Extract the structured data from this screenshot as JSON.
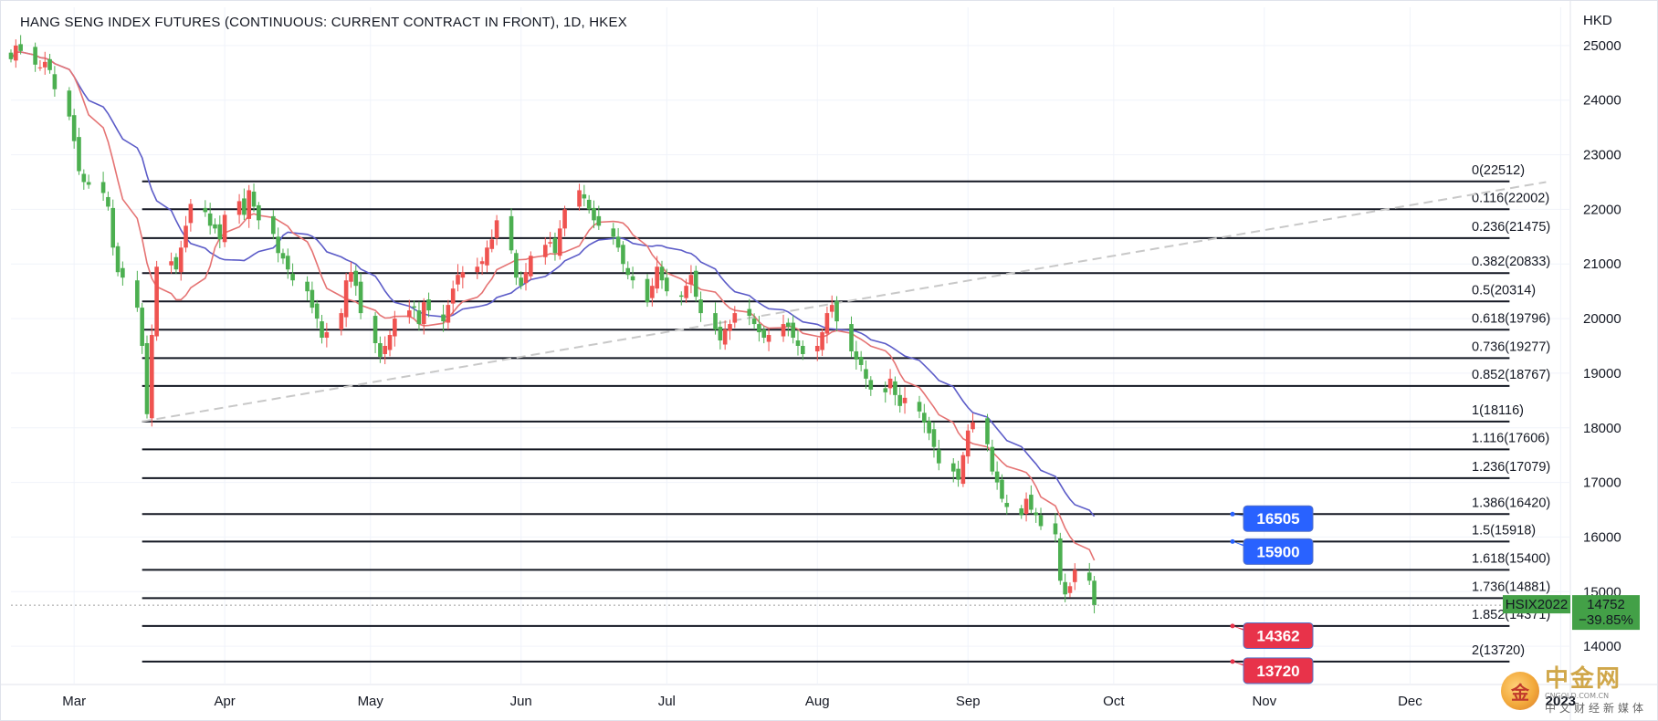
{
  "header": {
    "title": "HANG SENG INDEX FUTURES (CONTINUOUS: CURRENT CONTRACT IN FRONT), 1D, HKEX"
  },
  "price_axis": {
    "currency": "HKD",
    "ticks": [
      25000,
      24000,
      23000,
      22000,
      21000,
      20000,
      19000,
      18000,
      17000,
      16000,
      15000,
      14000
    ]
  },
  "time_axis": {
    "ticks": [
      "Mar",
      "Apr",
      "May",
      "Jun",
      "Jul",
      "Aug",
      "Sep",
      "Oct",
      "Nov",
      "Dec",
      "2023"
    ]
  },
  "last_price": {
    "symbol": "HSIX2022",
    "price": "14752",
    "change": "−39.85%",
    "value": 14752
  },
  "watermark": {
    "cn": "中金网",
    "en": "CNGOLD.COM.CN",
    "sub": "中文财经新媒体"
  },
  "colors": {
    "up": "#ef5350",
    "down": "#26a69a",
    "down_body": "#4caf50",
    "ma_fast": "#e57373",
    "ma_slow": "#5c5cc8",
    "fib_line": "#131722",
    "trendline": "#c8c8c8",
    "tag_blue": "#2962ff",
    "tag_red": "#e8334a",
    "last_badge": "#43a047"
  },
  "chart_data": {
    "type": "candlestick",
    "title": "HANG SENG INDEX FUTURES (CONTINUOUS: CURRENT CONTRACT IN FRONT), 1D, HKEX",
    "ylabel": "HKD",
    "ylim": [
      13300,
      25700
    ],
    "xlim": [
      "2022-02-16",
      "2023-01-03"
    ],
    "fib_levels": [
      {
        "ratio": "0",
        "price": 22512,
        "label": "0(22512)"
      },
      {
        "ratio": "0.116",
        "price": 22002,
        "label": "0.116(22002)"
      },
      {
        "ratio": "0.236",
        "price": 21475,
        "label": "0.236(21475)"
      },
      {
        "ratio": "0.382",
        "price": 20833,
        "label": "0.382(20833)"
      },
      {
        "ratio": "0.5",
        "price": 20314,
        "label": "0.5(20314)"
      },
      {
        "ratio": "0.618",
        "price": 19796,
        "label": "0.618(19796)"
      },
      {
        "ratio": "0.736",
        "price": 19277,
        "label": "0.736(19277)"
      },
      {
        "ratio": "0.852",
        "price": 18767,
        "label": "0.852(18767)"
      },
      {
        "ratio": "1",
        "price": 18116,
        "label": "1(18116)"
      },
      {
        "ratio": "1.116",
        "price": 17606,
        "label": "1.116(17606)"
      },
      {
        "ratio": "1.236",
        "price": 17079,
        "label": "1.236(17079)"
      },
      {
        "ratio": "1.386",
        "price": 16420,
        "label": "1.386(16420)"
      },
      {
        "ratio": "1.5",
        "price": 15918,
        "label": "1.5(15918)"
      },
      {
        "ratio": "1.618",
        "price": 15400,
        "label": "1.618(15400)"
      },
      {
        "ratio": "1.736",
        "price": 14881,
        "label": "1.736(14881)"
      },
      {
        "ratio": "1.852",
        "price": 14371,
        "label": "1.852(14371)"
      },
      {
        "ratio": "2",
        "price": 13720,
        "label": "2(13720)"
      }
    ],
    "fib_range": {
      "start": "2022-03-15",
      "end": "2022-12-29"
    },
    "trendline": {
      "start": {
        "date": "2022-03-15",
        "price": 18116
      },
      "end": {
        "date": "2022-12-29",
        "price": 22500
      }
    },
    "price_tags": [
      {
        "label": "16505",
        "price": 16505,
        "target": 16420,
        "color": "blue"
      },
      {
        "label": "15900",
        "price": 15900,
        "target": 15918,
        "color": "blue"
      },
      {
        "label": "14362",
        "price": 14362,
        "target": 14371,
        "color": "red"
      },
      {
        "label": "13720",
        "price": 13720,
        "target": 13720,
        "color": "red"
      }
    ],
    "start_date": "2022-02-16",
    "closes": [
      24750,
      25000,
      24900,
      24650,
      24600,
      24700,
      24550,
      24200,
      23700,
      23250,
      22700,
      22500,
      22450,
      22300,
      22050,
      21300,
      20850,
      20750,
      20200,
      19500,
      18250,
      19700,
      20950,
      21050,
      20900,
      21300,
      21700,
      22100,
      21950,
      21700,
      21650,
      21450,
      21900,
      22150,
      21900,
      22350,
      22050,
      21800,
      21550,
      21200,
      21100,
      20900,
      20700,
      20500,
      20200,
      20000,
      19650,
      19750,
      20100,
      20700,
      20850,
      20600,
      20100,
      19550,
      19300,
      19500,
      19700,
      20000,
      20150,
      20200,
      19900,
      20300,
      20150,
      19950,
      20250,
      20550,
      20800,
      20850,
      20950,
      21050,
      21300,
      21450,
      21800,
      21250,
      20750,
      20600,
      20850,
      21150,
      21350,
      21400,
      21200,
      21650,
      22000,
      22350,
      22200,
      22000,
      21800,
      21700,
      21500,
      21300,
      21000,
      20800,
      20700,
      20300,
      20600,
      20950,
      20700,
      20500,
      20400,
      20600,
      20800,
      20400,
      20100,
      19800,
      19600,
      19800,
      19900,
      20100,
      20050,
      19900,
      19750,
      19650,
      19700,
      19900,
      19850,
      19650,
      19500,
      19350,
      19500,
      19750,
      20100,
      20250,
      19950,
      19400,
      19250,
      19150,
      18900,
      18700,
      18650,
      18900,
      18600,
      18400,
      18550,
      18300,
      18100,
      17900,
      17650,
      17350,
      17200,
      17050,
      17500,
      17950,
      18100,
      17700,
      17200,
      17000,
      16700,
      16550,
      16400,
      16700,
      16500,
      16400,
      16200,
      16050,
      15200,
      14950,
      15100,
      15400,
      15200,
      14752
    ],
    "ma_fast_start_index": 0,
    "ma_slow_start_index": 0,
    "ma_period_fast": 10,
    "ma_period_slow": 20
  }
}
